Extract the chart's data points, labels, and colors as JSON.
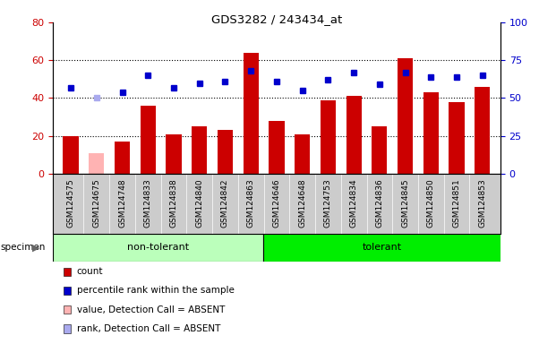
{
  "title": "GDS3282 / 243434_at",
  "samples": [
    "GSM124575",
    "GSM124675",
    "GSM124748",
    "GSM124833",
    "GSM124838",
    "GSM124840",
    "GSM124842",
    "GSM124863",
    "GSM124646",
    "GSM124648",
    "GSM124753",
    "GSM124834",
    "GSM124836",
    "GSM124845",
    "GSM124850",
    "GSM124851",
    "GSM124853"
  ],
  "counts": [
    20,
    11,
    17,
    36,
    21,
    25,
    23,
    64,
    28,
    21,
    39,
    41,
    25,
    61,
    43,
    38,
    46
  ],
  "percentile_ranks": [
    57,
    50,
    54,
    65,
    57,
    60,
    61,
    68,
    61,
    55,
    62,
    67,
    59,
    67,
    64,
    64,
    65
  ],
  "absent_flags": [
    false,
    true,
    false,
    false,
    false,
    false,
    false,
    false,
    false,
    false,
    false,
    false,
    false,
    false,
    false,
    false,
    false
  ],
  "groups": [
    "non-tolerant",
    "non-tolerant",
    "non-tolerant",
    "non-tolerant",
    "non-tolerant",
    "non-tolerant",
    "non-tolerant",
    "non-tolerant",
    "tolerant",
    "tolerant",
    "tolerant",
    "tolerant",
    "tolerant",
    "tolerant",
    "tolerant",
    "tolerant",
    "tolerant"
  ],
  "bar_color_present": "#cc0000",
  "bar_color_absent": "#ffb3b3",
  "dot_color_present": "#0000cc",
  "dot_color_absent": "#aaaaee",
  "non_tolerant_color": "#bbffbb",
  "tolerant_color": "#00ee00",
  "xtick_bg": "#cccccc",
  "ylim_left": [
    0,
    80
  ],
  "ylim_right": [
    0,
    100
  ],
  "yticks_left": [
    0,
    20,
    40,
    60,
    80
  ],
  "yticks_right": [
    0,
    25,
    50,
    75,
    100
  ],
  "legend_items": [
    {
      "label": "count",
      "color": "#cc0000"
    },
    {
      "label": "percentile rank within the sample",
      "color": "#0000cc"
    },
    {
      "label": "value, Detection Call = ABSENT",
      "color": "#ffb3b3"
    },
    {
      "label": "rank, Detection Call = ABSENT",
      "color": "#aaaaee"
    }
  ]
}
